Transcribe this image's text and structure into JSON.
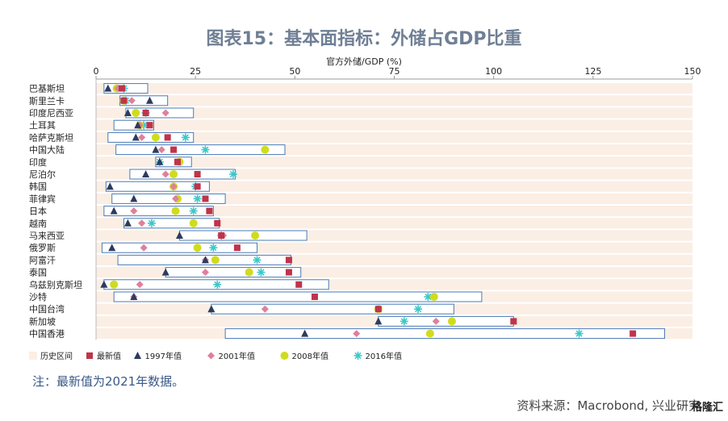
{
  "header": {
    "title": "图表15：基本面指标：外储占GDP比重"
  },
  "footer": {
    "note": "注：最新值为2021年数据。",
    "source": "资料来源：Macrobond, 兴业研究",
    "watermark": "格隆汇"
  },
  "colors": {
    "band": "#fbeee4",
    "range_border": "#4a7bb7",
    "latest": "#c0344a",
    "y1997": "#2e3b5e",
    "y2001": "#e0809a",
    "y2008": "#cfdc1e",
    "y2016": "#3cc8c8"
  },
  "chart_data": {
    "type": "range-dot",
    "xlabel": "官方外储/GDP (%)",
    "xlim": [
      0,
      150
    ],
    "xticks": [
      0,
      25,
      50,
      75,
      100,
      125,
      150
    ],
    "legend": {
      "position": "bottom-left",
      "items": [
        {
          "key": "range",
          "label": "历史区间"
        },
        {
          "key": "latest",
          "label": "最新值"
        },
        {
          "key": "y1997",
          "label": "1997年值"
        },
        {
          "key": "y2001",
          "label": "2001年值"
        },
        {
          "key": "y2008",
          "label": "2008年值"
        },
        {
          "key": "y2016",
          "label": "2016年值"
        }
      ]
    },
    "countries": [
      {
        "name": "巴基斯坦",
        "range": [
          2,
          13
        ],
        "latest": 6.5,
        "y1997": 3,
        "y2001": 5.5,
        "y2008": 5.2,
        "y2016": 7
      },
      {
        "name": "斯里兰卡",
        "range": [
          6,
          18
        ],
        "latest": 7,
        "y1997": 13.5,
        "y2001": 9,
        "y2008": 7,
        "y2016": 7.5
      },
      {
        "name": "印度尼西亚",
        "range": [
          7.5,
          24.5
        ],
        "latest": 12.5,
        "y1997": 8,
        "y2001": 17.5,
        "y2008": 10,
        "y2016": 12.5
      },
      {
        "name": "土耳其",
        "range": [
          4.5,
          14.5
        ],
        "latest": 13.5,
        "y1997": 10.5,
        "y2001": 11,
        "y2008": 11,
        "y2016": 12
      },
      {
        "name": "哈萨克斯坦",
        "range": [
          3,
          24.5
        ],
        "latest": 18,
        "y1997": 10,
        "y2001": 11.5,
        "y2008": 15,
        "y2016": 22.5
      },
      {
        "name": "中国大陆",
        "range": [
          5,
          47.5
        ],
        "latest": 19.5,
        "y1997": 15,
        "y2001": 16.5,
        "y2008": 42.5,
        "y2016": 27.5
      },
      {
        "name": "印度",
        "range": [
          15,
          24
        ],
        "latest": 20.5,
        "y1997": 16,
        "y2001": 20.5,
        "y2008": 21,
        "y2016": 16
      },
      {
        "name": "尼泊尔",
        "range": [
          8.5,
          35
        ],
        "latest": 25.5,
        "y1997": 12.5,
        "y2001": 17.5,
        "y2008": 19.5,
        "y2016": 34.5
      },
      {
        "name": "韩国",
        "range": [
          2.5,
          28.5
        ],
        "latest": 25.5,
        "y1997": 3.5,
        "y2001": 19.5,
        "y2008": 19.5,
        "y2016": 25
      },
      {
        "name": "菲律宾",
        "range": [
          4,
          32.5
        ],
        "latest": 27.5,
        "y1997": 9.5,
        "y2001": 20,
        "y2008": 20.5,
        "y2016": 25.5
      },
      {
        "name": "日本",
        "range": [
          2,
          29.5
        ],
        "latest": 28.5,
        "y1997": 4.5,
        "y2001": 9.5,
        "y2008": 20,
        "y2016": 24.5
      },
      {
        "name": "越南",
        "range": [
          7,
          31
        ],
        "latest": 30.5,
        "y1997": 8,
        "y2001": 11.5,
        "y2008": 24.5,
        "y2016": 14
      },
      {
        "name": "马来西亚",
        "range": [
          21,
          53
        ],
        "latest": 31.5,
        "y1997": 21,
        "y2001": 32,
        "y2008": 40,
        "y2016": 31.5
      },
      {
        "name": "俄罗斯",
        "range": [
          1.5,
          40.5
        ],
        "latest": 35.5,
        "y1997": 4,
        "y2001": 12,
        "y2008": 25.5,
        "y2016": 29.5
      },
      {
        "name": "阿富汗",
        "range": [
          5.5,
          49
        ],
        "latest": 48.5,
        "y1997": 27.5,
        "y2001": 27.5,
        "y2008": 30,
        "y2016": 40.5
      },
      {
        "name": "泰国",
        "range": [
          17.5,
          51.5
        ],
        "latest": 48.5,
        "y1997": 17.5,
        "y2001": 27.5,
        "y2008": 38.5,
        "y2016": 41.5
      },
      {
        "name": "乌兹别克斯坦",
        "range": [
          2,
          58.5
        ],
        "latest": 51,
        "y1997": 2,
        "y2001": 11,
        "y2008": 4.5,
        "y2016": 30.5
      },
      {
        "name": "沙特",
        "range": [
          4.5,
          97
        ],
        "latest": 55,
        "y1997": 9.5,
        "y2001": 9.5,
        "y2008": 85,
        "y2016": 83.5
      },
      {
        "name": "中国台湾",
        "range": [
          29,
          90
        ],
        "latest": 71,
        "y1997": 29,
        "y2001": 42.5,
        "y2008": 71,
        "y2016": 81
      },
      {
        "name": "新加坡",
        "range": [
          71,
          105
        ],
        "latest": 105,
        "y1997": 71,
        "y2001": 85.5,
        "y2008": 89.5,
        "y2016": 77.5
      },
      {
        "name": "中国香港",
        "range": [
          32.5,
          143
        ],
        "latest": 135,
        "y1997": 52.5,
        "y2001": 65.5,
        "y2008": 84,
        "y2016": 121.5
      }
    ]
  }
}
